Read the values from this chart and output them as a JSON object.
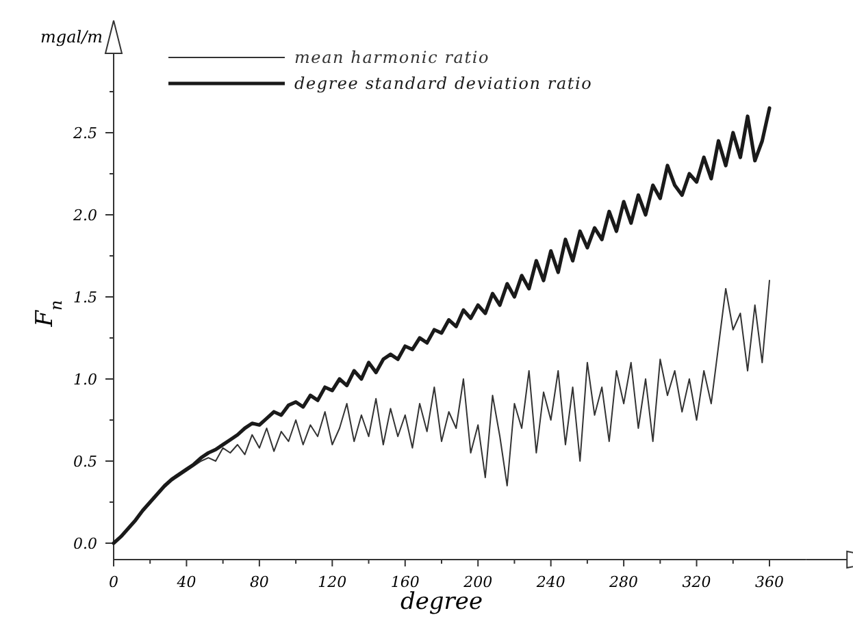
{
  "chart_data": {
    "type": "line",
    "xlabel": "degree",
    "ylabel": "F$_{n}$",
    "annotations": [
      "mgal/m"
    ],
    "x": [
      0,
      4,
      8,
      12,
      16,
      20,
      24,
      28,
      32,
      36,
      40,
      44,
      48,
      52,
      56,
      60,
      64,
      68,
      72,
      76,
      80,
      84,
      88,
      92,
      96,
      100,
      104,
      108,
      112,
      116,
      120,
      124,
      128,
      132,
      136,
      140,
      144,
      148,
      152,
      156,
      160,
      164,
      168,
      172,
      176,
      180,
      184,
      188,
      192,
      196,
      200,
      204,
      208,
      212,
      216,
      220,
      224,
      228,
      232,
      236,
      240,
      244,
      248,
      252,
      256,
      260,
      264,
      268,
      272,
      276,
      280,
      284,
      288,
      292,
      296,
      300,
      304,
      308,
      312,
      316,
      320,
      324,
      328,
      332,
      336,
      340,
      344,
      348,
      352,
      356,
      360
    ],
    "series": [
      {
        "name": "mean harmonic ratio",
        "color": "#333333",
        "values": [
          0,
          0.04,
          0.09,
          0.14,
          0.19,
          0.24,
          0.29,
          0.34,
          0.38,
          0.41,
          0.44,
          0.47,
          0.5,
          0.52,
          0.5,
          0.58,
          0.55,
          0.6,
          0.54,
          0.66,
          0.58,
          0.7,
          0.56,
          0.68,
          0.62,
          0.75,
          0.6,
          0.72,
          0.65,
          0.8,
          0.6,
          0.7,
          0.85,
          0.62,
          0.78,
          0.65,
          0.88,
          0.6,
          0.82,
          0.65,
          0.78,
          0.58,
          0.85,
          0.68,
          0.95,
          0.62,
          0.8,
          0.7,
          1.0,
          0.55,
          0.72,
          0.4,
          0.9,
          0.65,
          0.35,
          0.85,
          0.7,
          1.05,
          0.55,
          0.92,
          0.75,
          1.05,
          0.6,
          0.95,
          0.5,
          1.1,
          0.78,
          0.95,
          0.62,
          1.05,
          0.85,
          1.1,
          0.7,
          1.0,
          0.62,
          1.12,
          0.9,
          1.05,
          0.8,
          1.0,
          0.75,
          1.05,
          0.85,
          1.2,
          1.55,
          1.3,
          1.4,
          1.05,
          1.45,
          1.1,
          1.6
        ]
      },
      {
        "name": "degree standard deviation ratio",
        "color": "#1a1a1a",
        "values": [
          0,
          0.04,
          0.09,
          0.14,
          0.2,
          0.25,
          0.3,
          0.35,
          0.39,
          0.42,
          0.45,
          0.48,
          0.52,
          0.55,
          0.57,
          0.6,
          0.63,
          0.66,
          0.7,
          0.73,
          0.72,
          0.76,
          0.8,
          0.78,
          0.84,
          0.86,
          0.83,
          0.9,
          0.87,
          0.95,
          0.93,
          1.0,
          0.96,
          1.05,
          1.0,
          1.1,
          1.04,
          1.12,
          1.15,
          1.12,
          1.2,
          1.18,
          1.25,
          1.22,
          1.3,
          1.28,
          1.36,
          1.32,
          1.42,
          1.37,
          1.45,
          1.4,
          1.52,
          1.45,
          1.58,
          1.5,
          1.63,
          1.55,
          1.72,
          1.6,
          1.78,
          1.65,
          1.85,
          1.72,
          1.9,
          1.8,
          1.92,
          1.85,
          2.02,
          1.9,
          2.08,
          1.95,
          2.12,
          2.0,
          2.18,
          2.1,
          2.3,
          2.18,
          2.12,
          2.25,
          2.2,
          2.35,
          2.22,
          2.45,
          2.3,
          2.5,
          2.35,
          2.6,
          2.33,
          2.45,
          2.65
        ]
      }
    ],
    "xlim": [
      0,
      380
    ],
    "xticks": [
      0,
      {
        "value": 20,
        "label": null
      },
      40,
      {
        "value": 60,
        "label": null
      },
      80,
      {
        "value": 100,
        "label": null
      },
      120,
      {
        "value": 140,
        "label": null
      },
      160,
      {
        "value": 180,
        "label": null
      },
      200,
      {
        "value": 220,
        "label": null
      },
      240,
      {
        "value": 260,
        "label": null
      },
      280,
      {
        "value": 300,
        "label": null
      },
      320,
      {
        "value": 340,
        "label": null
      },
      360
    ],
    "ylim": [
      -0.1,
      2.9
    ],
    "yticks": [
      {
        "value": 0,
        "label": "0.0"
      },
      {
        "value": 0.25,
        "label": null
      },
      0.5,
      {
        "value": 0.75,
        "label": null
      },
      {
        "value": 1,
        "label": "1.0"
      },
      {
        "value": 1.25,
        "label": null
      },
      1.5,
      {
        "value": 1.75,
        "label": null
      },
      {
        "value": 2,
        "label": "2.0"
      },
      {
        "value": 2.25,
        "label": null
      },
      2.5,
      {
        "value": 2.75,
        "label": null
      }
    ],
    "grid": false,
    "legend": "top left",
    "marker": "none",
    "line_style": "solid"
  }
}
